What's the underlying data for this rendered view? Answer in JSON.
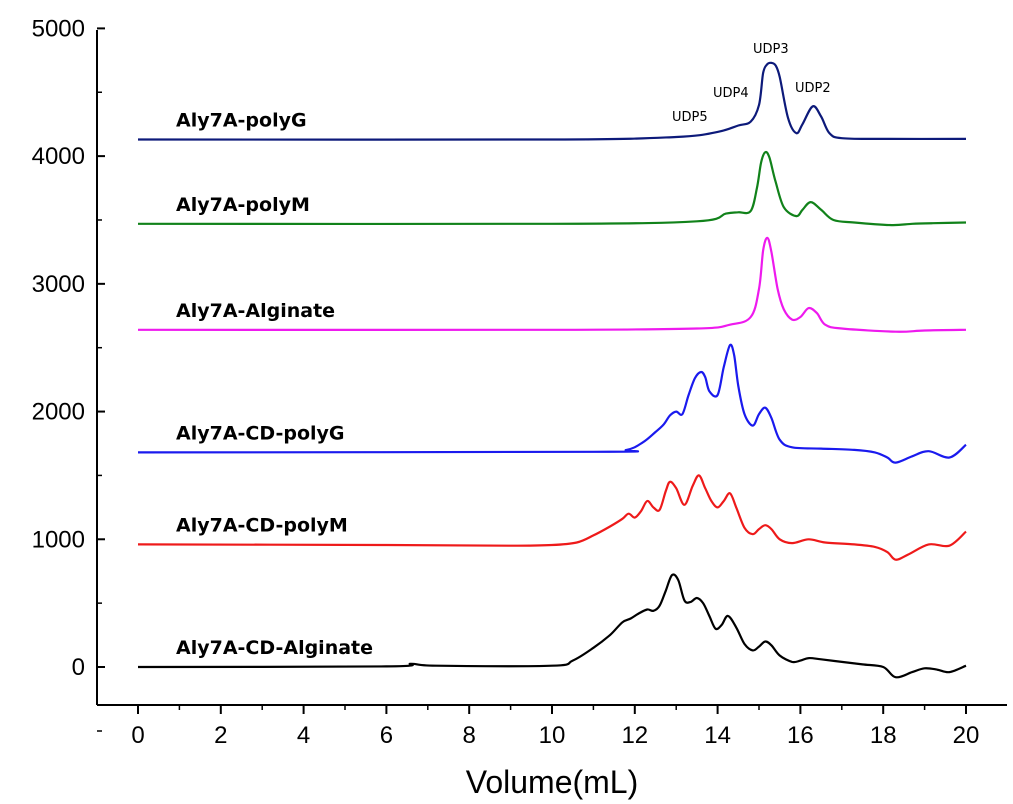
{
  "chart_data": {
    "type": "line",
    "xlabel": "Volume(mL)",
    "ylabel": "",
    "xlim": [
      -1,
      21
    ],
    "ylim": [
      -300,
      5000
    ],
    "xticks": [
      0,
      2,
      4,
      6,
      8,
      10,
      12,
      14,
      16,
      18,
      20
    ],
    "yticks": [
      0,
      1000,
      2000,
      3000,
      4000,
      5000
    ],
    "grid": false,
    "legend": "none",
    "series": [
      {
        "name": "Aly7A-polyG",
        "color": "#0d1a7a",
        "baseline": 4130,
        "x": [
          0,
          10,
          13,
          14,
          14.5,
          14.8,
          15.0,
          15.1,
          15.2,
          15.3,
          15.4,
          15.5,
          15.7,
          15.9,
          16.05,
          16.3,
          16.5,
          16.7,
          17.0,
          18,
          20
        ],
        "y": [
          4130,
          4130,
          4150,
          4190,
          4240,
          4270,
          4400,
          4650,
          4720,
          4730,
          4710,
          4620,
          4300,
          4180,
          4250,
          4390,
          4310,
          4180,
          4140,
          4135,
          4135
        ]
      },
      {
        "name": "Aly7A-polyM",
        "color": "#11821a",
        "baseline": 3470,
        "x": [
          0,
          10,
          13.5,
          14.2,
          14.5,
          14.8,
          14.95,
          15.05,
          15.15,
          15.25,
          15.4,
          15.6,
          15.9,
          16.05,
          16.25,
          16.5,
          16.8,
          17.3,
          18.2,
          18.7,
          19.2,
          20
        ],
        "y": [
          3470,
          3470,
          3490,
          3550,
          3560,
          3570,
          3750,
          3950,
          4030,
          3990,
          3800,
          3600,
          3530,
          3580,
          3640,
          3580,
          3500,
          3480,
          3460,
          3470,
          3475,
          3480
        ]
      },
      {
        "name": "Aly7A-Alginate",
        "color": "#ee1aee",
        "baseline": 2640,
        "x": [
          0,
          10,
          13.5,
          14.3,
          14.8,
          15.0,
          15.1,
          15.2,
          15.3,
          15.45,
          15.6,
          15.8,
          16.0,
          16.2,
          16.4,
          16.6,
          17.0,
          18.3,
          19,
          20
        ],
        "y": [
          2640,
          2640,
          2650,
          2680,
          2740,
          2960,
          3260,
          3360,
          3250,
          2960,
          2800,
          2720,
          2740,
          2810,
          2770,
          2680,
          2650,
          2625,
          2635,
          2640
        ]
      },
      {
        "name": "Aly7A-CD-polyG",
        "color": "#1a1aee",
        "baseline": 1680,
        "x": [
          0,
          11,
          11.8,
          12.2,
          12.5,
          12.7,
          12.85,
          13.0,
          13.15,
          13.3,
          13.45,
          13.6,
          13.7,
          13.8,
          14.0,
          14.15,
          14.3,
          14.4,
          14.5,
          14.65,
          14.85,
          15.0,
          15.15,
          15.3,
          15.5,
          15.8,
          16.5,
          17.3,
          17.8,
          18.1,
          18.3,
          18.7,
          19.1,
          19.6,
          20
        ],
        "y": [
          1680,
          1685,
          1700,
          1760,
          1840,
          1900,
          1970,
          2000,
          1980,
          2130,
          2260,
          2310,
          2270,
          2160,
          2130,
          2350,
          2520,
          2440,
          2200,
          1980,
          1890,
          1980,
          2030,
          1950,
          1780,
          1720,
          1710,
          1700,
          1680,
          1640,
          1600,
          1650,
          1690,
          1640,
          1740
        ]
      },
      {
        "name": "Aly7A-CD-polyM",
        "color": "#ee1a1a",
        "baseline": 960,
        "x": [
          0,
          6,
          9,
          10,
          10.6,
          11.0,
          11.4,
          11.7,
          11.85,
          12.0,
          12.15,
          12.3,
          12.45,
          12.6,
          12.75,
          12.85,
          13.0,
          13.2,
          13.4,
          13.55,
          13.7,
          13.85,
          14.0,
          14.15,
          14.3,
          14.45,
          14.65,
          14.85,
          15.0,
          15.15,
          15.3,
          15.5,
          15.8,
          16.2,
          16.6,
          17.3,
          17.8,
          18.1,
          18.3,
          18.6,
          19.1,
          19.6,
          20
        ],
        "y": [
          960,
          955,
          950,
          955,
          975,
          1030,
          1100,
          1160,
          1200,
          1170,
          1220,
          1300,
          1250,
          1230,
          1380,
          1450,
          1400,
          1270,
          1420,
          1500,
          1400,
          1300,
          1250,
          1300,
          1360,
          1250,
          1090,
          1040,
          1080,
          1110,
          1080,
          1000,
          970,
          1000,
          975,
          960,
          940,
          900,
          840,
          880,
          960,
          950,
          1060
        ]
      },
      {
        "name": "Aly7A-CD-Alginate",
        "color": "#000000",
        "baseline": 0,
        "x": [
          0,
          6,
          6.6,
          7.2,
          10,
          10.5,
          11.0,
          11.4,
          11.7,
          11.9,
          12.1,
          12.3,
          12.45,
          12.6,
          12.75,
          12.9,
          13.05,
          13.2,
          13.35,
          13.5,
          13.65,
          13.8,
          13.95,
          14.1,
          14.25,
          14.45,
          14.65,
          14.85,
          15.0,
          15.15,
          15.3,
          15.5,
          15.8,
          16.0,
          16.2,
          16.5,
          17.0,
          17.5,
          18.0,
          18.3,
          18.7,
          19.0,
          19.3,
          19.6,
          20
        ],
        "y": [
          0,
          5,
          25,
          10,
          10,
          50,
          150,
          250,
          350,
          380,
          420,
          450,
          440,
          480,
          600,
          720,
          680,
          520,
          510,
          540,
          500,
          400,
          300,
          330,
          400,
          310,
          180,
          130,
          160,
          200,
          170,
          90,
          40,
          50,
          70,
          60,
          40,
          20,
          0,
          -80,
          -40,
          -10,
          -20,
          -40,
          10
        ]
      }
    ],
    "annotations": [
      "UDP5",
      "UDP4",
      "UDP3",
      "UDP2"
    ]
  }
}
